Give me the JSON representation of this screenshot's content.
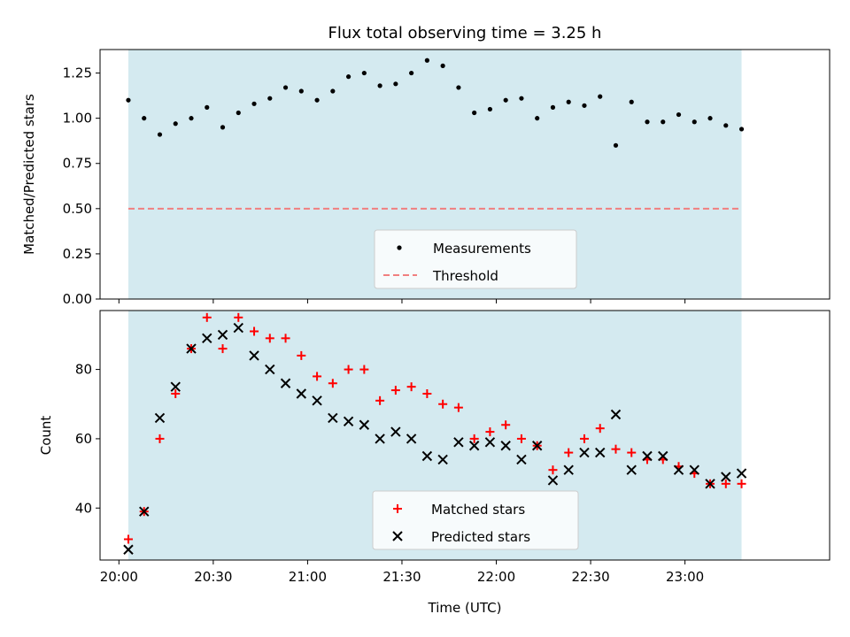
{
  "figure": {
    "title": "Flux total observing time = 3.25 h",
    "xlabel": "Time (UTC)",
    "colors": {
      "shade": "#d4eaf0",
      "measurement": "#000000",
      "threshold": "#f07f7f",
      "matched": "#ff0000",
      "predicted": "#000000"
    }
  },
  "chart_data": [
    {
      "type": "scatter",
      "ylabel": "Matched/Predicted stars",
      "xlim": [
        "19:54",
        "23:46"
      ],
      "ylim": [
        0,
        1.38
      ],
      "yticks": [
        0.0,
        0.25,
        0.5,
        0.75,
        1.0,
        1.25
      ],
      "ytick_labels": [
        "0.00",
        "0.25",
        "0.50",
        "0.75",
        "1.00",
        "1.25"
      ],
      "shaded_span": [
        "20:03",
        "23:18"
      ],
      "threshold": 0.5,
      "legend_position": "lower-center",
      "legend": [
        "Measurements",
        "Threshold"
      ],
      "series": [
        {
          "name": "Measurements",
          "marker": "dot",
          "x": [
            "20:03",
            "20:08",
            "20:13",
            "20:18",
            "20:23",
            "20:28",
            "20:33",
            "20:38",
            "20:43",
            "20:48",
            "20:53",
            "20:58",
            "21:03",
            "21:08",
            "21:13",
            "21:18",
            "21:23",
            "21:28",
            "21:33",
            "21:38",
            "21:43",
            "21:48",
            "21:53",
            "21:58",
            "22:03",
            "22:08",
            "22:13",
            "22:18",
            "22:23",
            "22:28",
            "22:33",
            "22:38",
            "22:43",
            "22:48",
            "22:53",
            "22:58",
            "23:03",
            "23:08",
            "23:13",
            "23:18"
          ],
          "y": [
            1.1,
            1.0,
            0.91,
            0.97,
            1.0,
            1.06,
            0.95,
            1.03,
            1.08,
            1.11,
            1.17,
            1.15,
            1.1,
            1.15,
            1.23,
            1.25,
            1.18,
            1.19,
            1.25,
            1.32,
            1.29,
            1.17,
            1.03,
            1.05,
            1.1,
            1.11,
            1.0,
            1.06,
            1.09,
            1.07,
            1.12,
            0.85,
            1.09,
            0.98,
            0.98,
            1.02,
            0.98,
            1.0,
            0.96,
            0.94
          ]
        },
        {
          "name": "Threshold",
          "style": "dashed",
          "y": 0.5
        }
      ]
    },
    {
      "type": "scatter",
      "ylabel": "Count",
      "xlim": [
        "19:54",
        "23:46"
      ],
      "ylim": [
        25,
        97
      ],
      "yticks": [
        40,
        60,
        80
      ],
      "ytick_labels": [
        "40",
        "60",
        "80"
      ],
      "xticks": [
        "20:00",
        "20:30",
        "21:00",
        "21:30",
        "22:00",
        "22:30",
        "23:00"
      ],
      "xtick_labels": [
        "20:00",
        "20:30",
        "21:00",
        "21:30",
        "22:00",
        "22:30",
        "23:00"
      ],
      "shaded_span": [
        "20:03",
        "23:18"
      ],
      "legend_position": "lower-center",
      "legend": [
        "Matched stars",
        "Predicted stars"
      ],
      "series": [
        {
          "name": "Matched stars",
          "marker": "plus",
          "x": [
            "20:03",
            "20:08",
            "20:13",
            "20:18",
            "20:23",
            "20:28",
            "20:33",
            "20:38",
            "20:43",
            "20:48",
            "20:53",
            "20:58",
            "21:03",
            "21:08",
            "21:13",
            "21:18",
            "21:23",
            "21:28",
            "21:33",
            "21:38",
            "21:43",
            "21:48",
            "21:53",
            "21:58",
            "22:03",
            "22:08",
            "22:13",
            "22:18",
            "22:23",
            "22:28",
            "22:33",
            "22:38",
            "22:43",
            "22:48",
            "22:53",
            "22:58",
            "23:03",
            "23:08",
            "23:13",
            "23:18"
          ],
          "y": [
            31,
            39,
            60,
            73,
            86,
            95,
            86,
            95,
            91,
            89,
            89,
            84,
            78,
            76,
            80,
            80,
            71,
            74,
            75,
            73,
            70,
            69,
            60,
            62,
            64,
            60,
            58,
            51,
            56,
            60,
            63,
            57,
            56,
            54,
            54,
            52,
            50,
            47,
            47,
            47
          ]
        },
        {
          "name": "Predicted stars",
          "marker": "x",
          "x": [
            "20:03",
            "20:08",
            "20:13",
            "20:18",
            "20:23",
            "20:28",
            "20:33",
            "20:38",
            "20:43",
            "20:48",
            "20:53",
            "20:58",
            "21:03",
            "21:08",
            "21:13",
            "21:18",
            "21:23",
            "21:28",
            "21:33",
            "21:38",
            "21:43",
            "21:48",
            "21:53",
            "21:58",
            "22:03",
            "22:08",
            "22:13",
            "22:18",
            "22:23",
            "22:28",
            "22:33",
            "22:38",
            "22:43",
            "22:48",
            "22:53",
            "22:58",
            "23:03",
            "23:08",
            "23:13",
            "23:18"
          ],
          "y": [
            28,
            39,
            66,
            75,
            86,
            89,
            90,
            92,
            84,
            80,
            76,
            73,
            71,
            66,
            65,
            64,
            60,
            62,
            60,
            55,
            54,
            59,
            58,
            59,
            58,
            54,
            58,
            48,
            51,
            56,
            56,
            67,
            51,
            55,
            55,
            51,
            51,
            47,
            49,
            50
          ]
        }
      ]
    }
  ]
}
